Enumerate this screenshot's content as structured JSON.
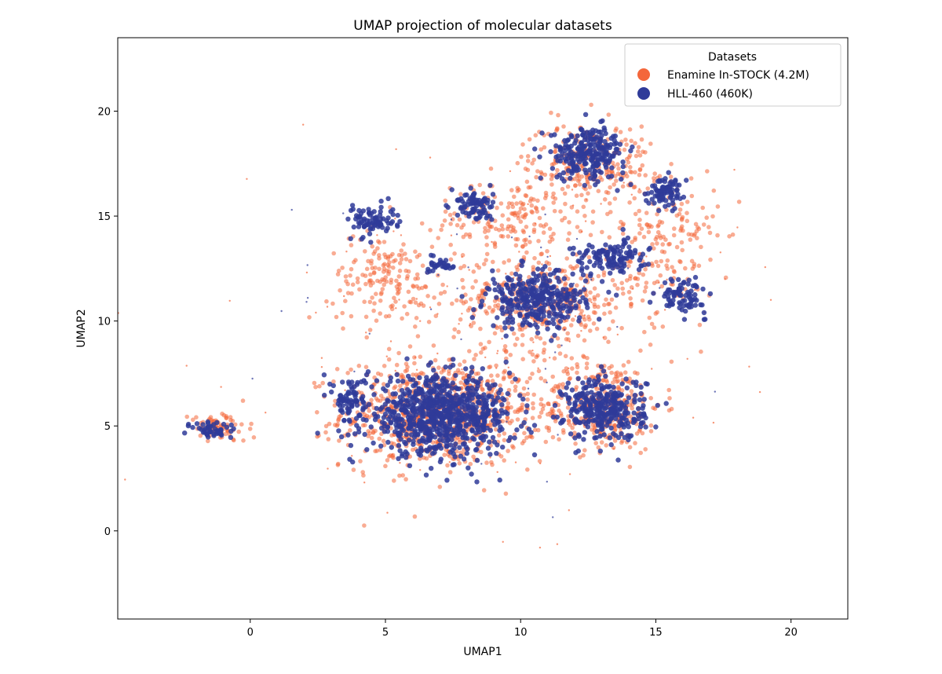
{
  "chart_data": {
    "type": "scatter",
    "title": "UMAP projection of molecular datasets",
    "xlabel": "UMAP1",
    "ylabel": "UMAP2",
    "xlim": [
      -4.9,
      22.1
    ],
    "ylim": [
      -4.2,
      23.5
    ],
    "xticks": [
      0,
      5,
      10,
      15,
      20
    ],
    "yticks": [
      0,
      5,
      10,
      15,
      20
    ],
    "grid": false,
    "legend": {
      "title": "Datasets",
      "placement": "top-right"
    },
    "series": [
      {
        "name": "Enamine In-STOCK (4.2M)",
        "color": "#f4673b",
        "clusters": [
          {
            "center": [
              7,
              5.6
            ],
            "spread": [
              2.4,
              1.7
            ],
            "weight": 10
          },
          {
            "center": [
              13,
              6
            ],
            "spread": [
              1.5,
              1.5
            ],
            "weight": 4
          },
          {
            "center": [
              10.8,
              11
            ],
            "spread": [
              2.2,
              1.6
            ],
            "weight": 5
          },
          {
            "center": [
              12.5,
              17.5
            ],
            "spread": [
              1.6,
              1.3
            ],
            "weight": 3
          },
          {
            "center": [
              15.5,
              13.5
            ],
            "spread": [
              1.2,
              2.5
            ],
            "weight": 2
          },
          {
            "center": [
              5,
              12
            ],
            "spread": [
              1.4,
              1.4
            ],
            "weight": 2
          },
          {
            "center": [
              9.5,
              15
            ],
            "spread": [
              1.8,
              1.2
            ],
            "weight": 2
          },
          {
            "center": [
              -1.2,
              4.9
            ],
            "spread": [
              0.7,
              0.45
            ],
            "weight": 1
          },
          {
            "center": [
              9,
              9.5
            ],
            "spread": [
              6,
              5.5
            ],
            "weight": 2
          }
        ]
      },
      {
        "name": "HLL-460 (460K)",
        "color": "#2f3b99",
        "clusters": [
          {
            "center": [
              7,
              5.5
            ],
            "spread": [
              1.8,
              1.2
            ],
            "weight": 10
          },
          {
            "center": [
              13.1,
              5.8
            ],
            "spread": [
              1.0,
              1.0
            ],
            "weight": 4
          },
          {
            "center": [
              10.6,
              11
            ],
            "spread": [
              1.2,
              0.9
            ],
            "weight": 4
          },
          {
            "center": [
              12.5,
              18
            ],
            "spread": [
              0.9,
              0.8
            ],
            "weight": 3
          },
          {
            "center": [
              15.4,
              16.2
            ],
            "spread": [
              0.45,
              0.45
            ],
            "weight": 1
          },
          {
            "center": [
              16,
              11.2
            ],
            "spread": [
              0.55,
              0.55
            ],
            "weight": 1
          },
          {
            "center": [
              13.3,
              13
            ],
            "spread": [
              0.9,
              0.55
            ],
            "weight": 1.5
          },
          {
            "center": [
              4.5,
              14.8
            ],
            "spread": [
              0.6,
              0.5
            ],
            "weight": 1
          },
          {
            "center": [
              8.3,
              15.5
            ],
            "spread": [
              0.45,
              0.5
            ],
            "weight": 1
          },
          {
            "center": [
              7.1,
              12.7
            ],
            "spread": [
              0.3,
              0.25
            ],
            "weight": 0.4
          },
          {
            "center": [
              3.7,
              6.3
            ],
            "spread": [
              0.4,
              0.7
            ],
            "weight": 0.8
          },
          {
            "center": [
              -1.3,
              4.8
            ],
            "spread": [
              0.55,
              0.35
            ],
            "weight": 0.6
          },
          {
            "center": [
              9,
              9.5
            ],
            "spread": [
              5.5,
              5
            ],
            "weight": 0.6
          }
        ]
      }
    ]
  }
}
